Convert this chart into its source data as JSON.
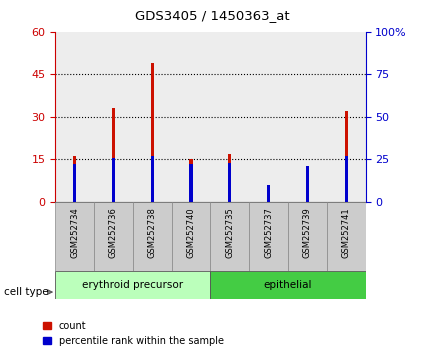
{
  "title": "GDS3405 / 1450363_at",
  "samples": [
    "GSM252734",
    "GSM252736",
    "GSM252738",
    "GSM252740",
    "GSM252735",
    "GSM252737",
    "GSM252739",
    "GSM252741"
  ],
  "counts": [
    16,
    33,
    49,
    15,
    17,
    5,
    6,
    32
  ],
  "percentile_ranks": [
    22,
    26,
    27,
    22,
    23,
    10,
    21,
    27
  ],
  "ylim_left": [
    0,
    60
  ],
  "ylim_right": [
    0,
    100
  ],
  "yticks_left": [
    0,
    15,
    30,
    45,
    60
  ],
  "yticks_right": [
    0,
    25,
    50,
    75,
    100
  ],
  "yticklabels_right": [
    "0",
    "25",
    "50",
    "75",
    "100%"
  ],
  "left_tick_color": "#cc0000",
  "right_tick_color": "#0000cc",
  "bar_width": 0.08,
  "count_color": "#cc1100",
  "percentile_color": "#0000cc",
  "groups": [
    {
      "label": "erythroid precursor",
      "color_light": "#bbffbb",
      "color_dark": "#44cc44",
      "start": 0,
      "end": 3
    },
    {
      "label": "epithelial",
      "color_light": "#44cc44",
      "color_dark": "#44cc44",
      "start": 4,
      "end": 7
    }
  ],
  "cell_type_label": "cell type",
  "legend_count_label": "count",
  "legend_percentile_label": "percentile rank within the sample",
  "plot_bg_color": "#ffffff",
  "x_label_bg": "#cccccc",
  "group1_color": "#bbffbb",
  "group2_color": "#44cc44"
}
